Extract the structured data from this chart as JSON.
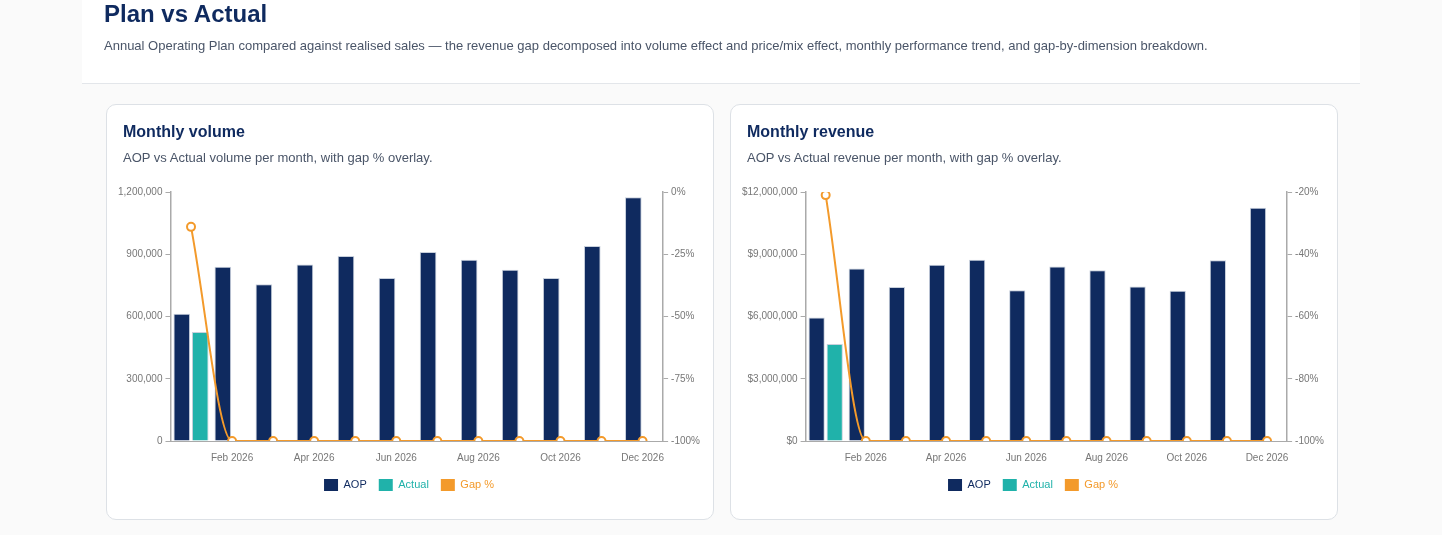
{
  "chart_data": [
    {
      "type": "other",
      "title": "Plan vs Actual",
      "subtitle": "Annual Operating Plan compared against realised sales — the revenue gap decomposed into volume effect and price/mix effect, monthly performance trend, and gap-by-dimension breakdown."
    },
    {
      "type": "bar",
      "title": "Monthly volume",
      "subtitle": "AOP vs Actual volume per month, with gap % overlay.",
      "categories": [
        null,
        "Feb 2026",
        null,
        "Apr 2026",
        null,
        "Jun 2026",
        null,
        "Aug 2026",
        null,
        "Oct 2026",
        null,
        "Dec 2026"
      ],
      "series": [
        {
          "name": "AOP",
          "color": "#0f2a5f",
          "values": [
            613000,
            840000,
            755000,
            851000,
            891000,
            785000,
            911000,
            874000,
            825000,
            785000,
            940000,
            1175000
          ]
        },
        {
          "name": "Actual",
          "color": "#20b2aa",
          "values": [
            525000,
            0,
            0,
            0,
            0,
            0,
            0,
            0,
            0,
            0,
            0,
            0
          ]
        },
        {
          "name": "Gap %",
          "color": "#f39a2b",
          "type": "line",
          "axis": "y2",
          "values": [
            -14,
            -100,
            -100,
            -100,
            -100,
            -100,
            -100,
            -100,
            -100,
            -100,
            -100,
            -100
          ]
        }
      ],
      "ylim": [
        0,
        1200000
      ],
      "yticks": [
        0,
        {
          "value": 300000,
          "label": "300,000"
        },
        {
          "value": 600000,
          "label": "600,000"
        },
        {
          "value": 900000,
          "label": "900,000"
        },
        {
          "value": 1200000,
          "label": "1,200,000"
        }
      ],
      "y2lim": [
        -100,
        0
      ],
      "y2ticks": [
        {
          "value": -100,
          "label": "-100%"
        },
        {
          "value": -75,
          "label": "-75%"
        },
        {
          "value": -50,
          "label": "-50%"
        },
        {
          "value": -25,
          "label": "-25%"
        },
        {
          "value": 0,
          "label": "0%"
        }
      ],
      "grid": false,
      "legend": "bottom",
      "marker": "circle"
    },
    {
      "type": "bar",
      "title": "Monthly revenue",
      "subtitle": "AOP vs Actual revenue per month, with gap % overlay.",
      "categories": [
        null,
        "Feb 2026",
        null,
        "Apr 2026",
        null,
        "Jun 2026",
        null,
        "Aug 2026",
        null,
        "Oct 2026",
        null,
        "Dec 2026"
      ],
      "series": [
        {
          "name": "AOP",
          "color": "#0f2a5f",
          "values": [
            5950000,
            8310000,
            7420000,
            8500000,
            8740000,
            7270000,
            8410000,
            8230000,
            7450000,
            7240000,
            8710000,
            11240000
          ]
        },
        {
          "name": "Actual",
          "color": "#20b2aa",
          "values": [
            4680000,
            0,
            0,
            0,
            0,
            0,
            0,
            0,
            0,
            0,
            0,
            0
          ]
        },
        {
          "name": "Gap %",
          "color": "#f39a2b",
          "type": "line",
          "axis": "y2",
          "values": [
            -21,
            -100,
            -100,
            -100,
            -100,
            -100,
            -100,
            -100,
            -100,
            -100,
            -100,
            -100
          ]
        }
      ],
      "ylim": [
        0,
        12000000
      ],
      "yticks": [
        {
          "value": 0,
          "label": "$0"
        },
        {
          "value": 3000000,
          "label": "$3,000,000"
        },
        {
          "value": 6000000,
          "label": "$6,000,000"
        },
        {
          "value": 9000000,
          "label": "$9,000,000"
        },
        {
          "value": 12000000,
          "label": "$12,000,000"
        }
      ],
      "y2lim": [
        -100,
        -20
      ],
      "y2ticks": [
        {
          "value": -100,
          "label": "-100%"
        },
        {
          "value": -80,
          "label": "-80%"
        },
        {
          "value": -60,
          "label": "-60%"
        },
        {
          "value": -40,
          "label": "-40%"
        },
        {
          "value": -20,
          "label": "-20%"
        }
      ],
      "grid": false,
      "legend": "bottom",
      "marker": "circle"
    }
  ]
}
